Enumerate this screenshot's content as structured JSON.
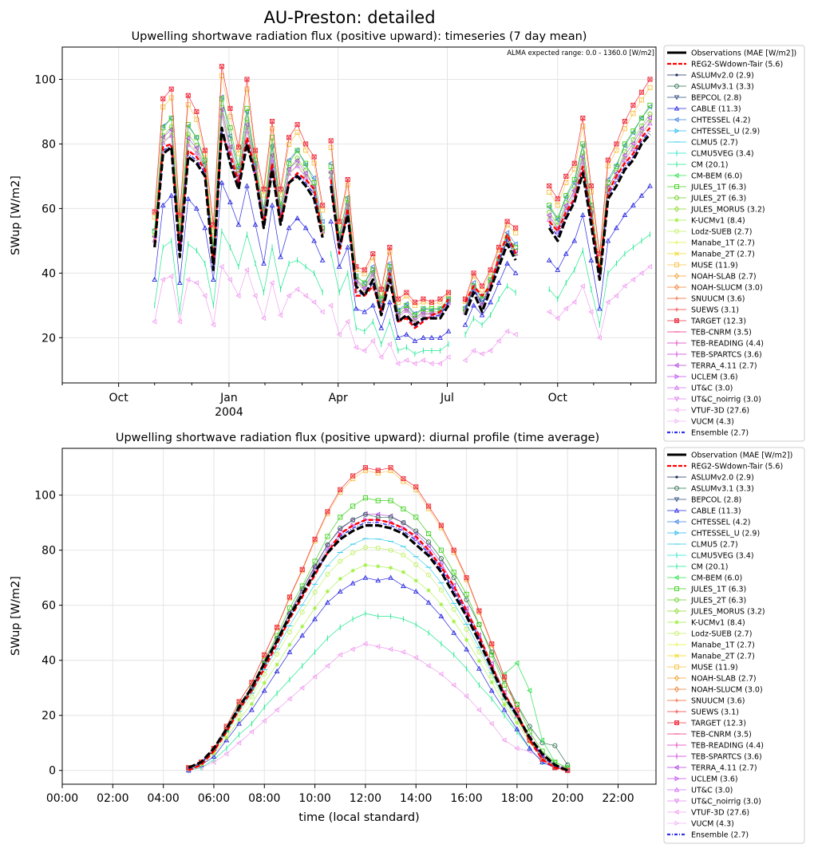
{
  "figure": {
    "title": "AU-Preston: detailed"
  },
  "chart_data": [
    {
      "type": "line",
      "title": "Upwelling shortwave radiation flux (positive upward): timeseries (7 day mean)",
      "ylabel": "SWup [W/m2]",
      "xlabel": "",
      "note": "ALMA expected range: 0.0 - 1360.0 [W/m2]",
      "x_unit": "days since Aug 15, 2003",
      "xlim": [
        0,
        495
      ],
      "ylim": [
        6,
        110
      ],
      "yticks": [
        20,
        40,
        60,
        80,
        100
      ],
      "xticks": [
        {
          "label": "Oct",
          "sub": "",
          "x": 47
        },
        {
          "label": "Jan",
          "sub": "2004",
          "x": 139
        },
        {
          "label": "Apr",
          "sub": "",
          "x": 230
        },
        {
          "label": "Jul",
          "sub": "",
          "x": 321
        },
        {
          "label": "Oct",
          "sub": "",
          "x": 413
        }
      ],
      "minor_xticks": [
        0,
        77,
        108,
        169,
        200,
        260,
        291,
        352,
        382,
        443,
        474
      ],
      "grid": true,
      "legend_position": "outside-right",
      "segments": [
        {
          "x": [
            77,
            84,
            91,
            98,
            105,
            112,
            119,
            126,
            133,
            140,
            147,
            154,
            161,
            168,
            175,
            182,
            189,
            196,
            203,
            210,
            217
          ],
          "obs": [
            48,
            77,
            79,
            45,
            76,
            74,
            70,
            41,
            85,
            74,
            66,
            80,
            70,
            54,
            72,
            55,
            68,
            70,
            67,
            63,
            51
          ],
          "reg2": [
            49,
            79,
            80,
            47,
            78,
            76,
            72,
            43,
            83,
            77,
            68,
            82,
            71,
            55,
            74,
            56,
            68,
            71,
            69,
            66,
            52
          ],
          "target": [
            59,
            94,
            97,
            58,
            95,
            90,
            78,
            55,
            104,
            91,
            79,
            100,
            78,
            66,
            87,
            66,
            82,
            86,
            80,
            76,
            61
          ],
          "jules": [
            53,
            85,
            88,
            53,
            86,
            82,
            75,
            48,
            94,
            85,
            73,
            91,
            75,
            59,
            82,
            61,
            74,
            78,
            74,
            68,
            54
          ],
          "cable": [
            38,
            61,
            64,
            37,
            63,
            60,
            54,
            38,
            68,
            62,
            55,
            67,
            55,
            43,
            61,
            45,
            54,
            57,
            54,
            50,
            44
          ],
          "cm": [
            30,
            48,
            50,
            28,
            49,
            47,
            43,
            30,
            53,
            48,
            42,
            52,
            43,
            34,
            48,
            35,
            43,
            44,
            42,
            40,
            34
          ],
          "vtuf": [
            25,
            38,
            39,
            25,
            38,
            37,
            33,
            24,
            42,
            38,
            33,
            41,
            33,
            26,
            37,
            27,
            33,
            35,
            33,
            31,
            28
          ]
        },
        {
          "x": [
            224,
            231,
            238,
            245,
            252,
            259,
            266,
            273,
            280,
            287,
            294,
            301,
            308,
            315,
            322
          ],
          "obs": [
            67,
            48,
            58,
            36,
            33,
            38,
            27,
            38,
            25,
            27,
            24,
            26,
            26,
            26,
            30
          ],
          "reg2": [
            69,
            46,
            60,
            33,
            33,
            36,
            28,
            40,
            25,
            26,
            23,
            25,
            27,
            28,
            32
          ],
          "target": [
            81,
            56,
            69,
            42,
            41,
            46,
            35,
            48,
            32,
            34,
            31,
            32,
            31,
            32,
            34
          ],
          "jules": [
            73,
            52,
            63,
            39,
            37,
            41,
            32,
            42,
            28,
            30,
            27,
            29,
            29,
            29,
            32
          ],
          "cable": [
            56,
            42,
            48,
            29,
            28,
            30,
            23,
            31,
            20,
            21,
            19,
            20,
            20,
            20,
            22
          ],
          "cm": [
            46,
            34,
            40,
            23,
            22,
            25,
            18,
            25,
            16,
            17,
            15,
            16,
            16,
            16,
            18
          ],
          "vtuf": [
            30,
            21,
            25,
            17,
            16,
            19,
            14,
            18,
            12,
            13,
            12,
            13,
            12,
            12,
            14
          ]
        },
        {
          "x": [
            336,
            343,
            350,
            357,
            364,
            371,
            378
          ],
          "obs": [
            27,
            34,
            28,
            35,
            42,
            49,
            44
          ],
          "reg2": [
            31,
            36,
            33,
            36,
            45,
            52,
            46
          ],
          "target": [
            32,
            40,
            36,
            41,
            48,
            56,
            54
          ],
          "jules": [
            29,
            36,
            32,
            38,
            44,
            51,
            48
          ],
          "cable": [
            24,
            30,
            27,
            31,
            37,
            43,
            40
          ],
          "cm": [
            21,
            26,
            24,
            27,
            32,
            36,
            34
          ],
          "vtuf": [
            13,
            16,
            15,
            16,
            19,
            22,
            21
          ]
        },
        {
          "x": [
            406,
            413,
            420,
            427,
            434,
            441,
            448,
            455,
            462,
            469,
            476,
            483,
            490
          ],
          "obs": [
            54,
            50,
            57,
            62,
            71,
            55,
            38,
            63,
            67,
            72,
            75,
            80,
            83
          ],
          "reg2": [
            56,
            53,
            59,
            63,
            73,
            58,
            40,
            65,
            70,
            74,
            77,
            82,
            85
          ],
          "target": [
            67,
            63,
            70,
            74,
            88,
            67,
            46,
            75,
            80,
            87,
            92,
            96,
            100
          ],
          "jules": [
            61,
            57,
            64,
            69,
            80,
            61,
            42,
            68,
            73,
            80,
            84,
            88,
            92
          ],
          "cable": [
            44,
            41,
            46,
            50,
            58,
            44,
            29,
            50,
            54,
            58,
            61,
            64,
            67
          ],
          "cm": [
            35,
            32,
            37,
            41,
            47,
            35,
            24,
            40,
            43,
            46,
            48,
            50,
            52
          ],
          "vtuf": [
            28,
            26,
            29,
            31,
            36,
            28,
            20,
            31,
            33,
            36,
            38,
            40,
            42
          ]
        }
      ]
    },
    {
      "type": "line",
      "title": "Upwelling shortwave radiation flux (positive upward): diurnal profile (time average)",
      "ylabel": "SWup [W/m2]",
      "xlabel": "time (local standard)",
      "xlim": [
        0,
        23.5
      ],
      "ylim": [
        -5,
        117
      ],
      "yticks": [
        0,
        20,
        40,
        60,
        80,
        100
      ],
      "xticks": [
        "00:00",
        "02:00",
        "04:00",
        "06:00",
        "08:00",
        "10:00",
        "12:00",
        "14:00",
        "16:00",
        "18:00",
        "20:00",
        "22:00"
      ],
      "grid": true,
      "legend_position": "outside-right",
      "x": [
        5,
        5.5,
        6,
        6.5,
        7,
        7.5,
        8,
        8.5,
        9,
        9.5,
        10,
        10.5,
        11,
        11.5,
        12,
        12.5,
        13,
        13.5,
        14,
        14.5,
        15,
        15.5,
        16,
        16.5,
        17,
        17.5,
        18,
        18.5,
        19,
        19.5,
        20
      ],
      "obs": [
        1,
        3,
        8,
        15,
        23,
        30,
        39,
        47,
        56,
        64,
        72,
        79,
        84,
        87,
        89,
        89,
        88,
        86,
        82,
        78,
        72,
        64,
        56,
        47,
        37,
        27,
        20,
        12,
        6,
        2,
        0
      ],
      "reg2": [
        0,
        2,
        7,
        14,
        22,
        29,
        37,
        46,
        55,
        63,
        71,
        79,
        86,
        89,
        91,
        91,
        90,
        88,
        85,
        80,
        74,
        67,
        58,
        49,
        38,
        28,
        20,
        11,
        4,
        1,
        0
      ],
      "target": [
        1,
        3,
        8,
        16,
        25,
        32,
        42,
        52,
        63,
        73,
        84,
        94,
        102,
        107,
        110,
        109,
        110,
        106,
        103,
        96,
        89,
        80,
        70,
        58,
        46,
        34,
        22,
        11,
        4,
        1,
        0
      ],
      "jules": [
        1,
        3,
        8,
        15,
        24,
        30,
        40,
        49,
        59,
        67,
        76,
        85,
        92,
        96,
        99,
        98,
        98,
        95,
        92,
        86,
        80,
        72,
        64,
        53,
        42,
        31,
        24,
        14,
        7,
        3,
        1
      ],
      "cable": [
        0,
        2,
        5,
        11,
        17,
        22,
        29,
        36,
        43,
        49,
        55,
        61,
        65,
        68,
        70,
        69,
        70,
        67,
        65,
        61,
        56,
        50,
        44,
        37,
        29,
        22,
        15,
        8,
        3,
        1,
        0
      ],
      "cm": [
        0,
        1,
        4,
        8,
        13,
        17,
        23,
        28,
        33,
        38,
        43,
        48,
        52,
        55,
        57,
        56,
        56,
        55,
        53,
        50,
        46,
        42,
        37,
        31,
        26,
        20,
        14,
        8,
        3,
        1,
        0
      ],
      "vtuf": [
        0,
        1,
        3,
        6,
        10,
        14,
        18,
        22,
        26,
        30,
        34,
        38,
        42,
        44,
        46,
        45,
        44,
        43,
        41,
        38,
        35,
        31,
        27,
        22,
        17,
        11,
        8,
        7,
        4,
        2,
        1
      ],
      "cmbem": [
        null,
        null,
        null,
        null,
        null,
        null,
        null,
        null,
        null,
        null,
        null,
        null,
        null,
        null,
        null,
        null,
        null,
        null,
        null,
        null,
        null,
        null,
        null,
        null,
        null,
        35,
        39,
        29,
        11,
        3,
        1
      ],
      "aslum": [
        1,
        3,
        8,
        15,
        23,
        30,
        39,
        48,
        57,
        66,
        74,
        82,
        88,
        91,
        93,
        92,
        92,
        90,
        87,
        83,
        77,
        70,
        62,
        53,
        43,
        33,
        24,
        16,
        10,
        9,
        2
      ]
    }
  ],
  "legend": [
    {
      "label": "Observations (MAE [W/m2])",
      "color": "#000000",
      "style": "thick",
      "marker": "none"
    },
    {
      "label": "REG2-SWdown-Tair (5.6)",
      "color": "#ff0000",
      "style": "dash",
      "marker": "none"
    },
    {
      "label": "ASLUMv2.0 (2.9)",
      "color": "#1f2f5f",
      "style": "solid",
      "marker": "dot"
    },
    {
      "label": "ASLUMv3.1 (3.3)",
      "color": "#2f6f4f",
      "style": "solid",
      "marker": "circle"
    },
    {
      "label": "BEPCOL (2.8)",
      "color": "#2f4f7f",
      "style": "solid",
      "marker": "tri-down"
    },
    {
      "label": "CABLE (11.3)",
      "color": "#2828e0",
      "style": "solid",
      "marker": "tri-up"
    },
    {
      "label": "CHTESSEL (4.2)",
      "color": "#3a7fe0",
      "style": "solid",
      "marker": "tri-left"
    },
    {
      "label": "CHTESSEL_U (2.9)",
      "color": "#28b8f0",
      "style": "solid",
      "marker": "tri-right"
    },
    {
      "label": "CLMU5 (2.7)",
      "color": "#20c8e8",
      "style": "solid",
      "marker": "hline"
    },
    {
      "label": "CLMU5VEG (3.4)",
      "color": "#20e0c8",
      "style": "solid",
      "marker": "vline"
    },
    {
      "label": "CM (20.1)",
      "color": "#20e890",
      "style": "solid",
      "marker": "vline"
    },
    {
      "label": "CM-BEM (6.0)",
      "color": "#30e050",
      "style": "solid",
      "marker": "tri-left"
    },
    {
      "label": "JULES_1T (6.3)",
      "color": "#40d020",
      "style": "solid",
      "marker": "square"
    },
    {
      "label": "JULES_2T (6.3)",
      "color": "#68d020",
      "style": "solid",
      "marker": "circle"
    },
    {
      "label": "JULES_MORUS (3.2)",
      "color": "#88d828",
      "style": "solid",
      "marker": "diamond"
    },
    {
      "label": "K-UCMv1 (8.4)",
      "color": "#a0f040",
      "style": "solid",
      "marker": "star"
    },
    {
      "label": "Lodz-SUEB (2.7)",
      "color": "#c0f060",
      "style": "solid",
      "marker": "circle"
    },
    {
      "label": "Manabe_1T (2.7)",
      "color": "#e8f040",
      "style": "solid",
      "marker": "plus"
    },
    {
      "label": "Manabe_2T (2.7)",
      "color": "#f0d820",
      "style": "solid",
      "marker": "x"
    },
    {
      "label": "MUSE (11.9)",
      "color": "#f8c040",
      "style": "solid",
      "marker": "square"
    },
    {
      "label": "NOAH-SLAB (2.7)",
      "color": "#f0a030",
      "style": "solid",
      "marker": "diamond"
    },
    {
      "label": "NOAH-SLUCM (3.0)",
      "color": "#f08030",
      "style": "solid",
      "marker": "diamond"
    },
    {
      "label": "SNUUCM (3.6)",
      "color": "#f06030",
      "style": "solid",
      "marker": "plus"
    },
    {
      "label": "SUEWS (3.1)",
      "color": "#f03838",
      "style": "solid",
      "marker": "plus"
    },
    {
      "label": "TARGET (12.3)",
      "color": "#f03040",
      "style": "solid",
      "marker": "xsquare"
    },
    {
      "label": "TEB-CNRM (3.5)",
      "color": "#f02880",
      "style": "solid",
      "marker": "hline"
    },
    {
      "label": "TEB-READING (4.4)",
      "color": "#e030b8",
      "style": "solid",
      "marker": "vline"
    },
    {
      "label": "TEB-SPARTCS (3.6)",
      "color": "#c838d8",
      "style": "solid",
      "marker": "vline"
    },
    {
      "label": "TERRA_4.11 (2.7)",
      "color": "#b040e0",
      "style": "solid",
      "marker": "tri-left"
    },
    {
      "label": "UCLEM (3.6)",
      "color": "#c050f0",
      "style": "solid",
      "marker": "tri-right"
    },
    {
      "label": "UT&C (3.0)",
      "color": "#d070f0",
      "style": "solid",
      "marker": "tri-up"
    },
    {
      "label": "UT&C_noirrig (3.0)",
      "color": "#e080f0",
      "style": "solid",
      "marker": "tri-down"
    },
    {
      "label": "VTUF-3D (27.6)",
      "color": "#f0a0f0",
      "style": "solid",
      "marker": "tri-left"
    },
    {
      "label": "VUCM (4.3)",
      "color": "#f0b8f8",
      "style": "solid",
      "marker": "tri-right"
    },
    {
      "label": "Ensemble (2.7)",
      "color": "#3030f0",
      "style": "dashdot",
      "marker": "none"
    }
  ],
  "legend2_first_label": "Observation (MAE [W/m2])"
}
